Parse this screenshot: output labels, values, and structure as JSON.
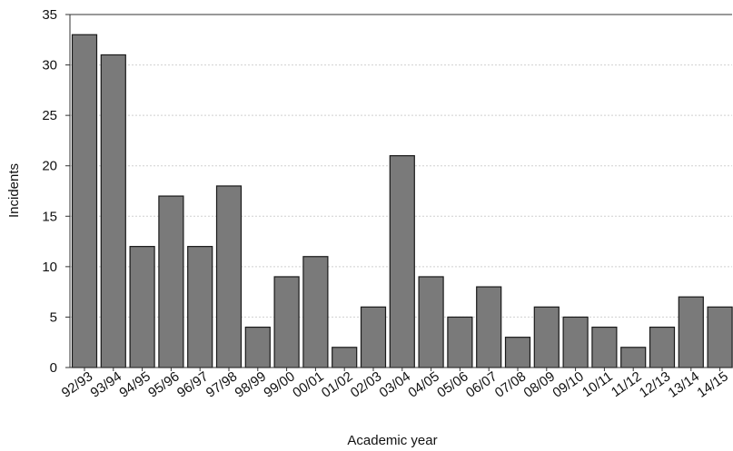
{
  "chart_data": {
    "type": "bar",
    "xlabel": "Academic year",
    "ylabel": "Incidents",
    "ylim": [
      0,
      35
    ],
    "yticks": [
      0,
      5,
      10,
      15,
      20,
      25,
      30,
      35
    ],
    "grid": true,
    "categories": [
      "92/93",
      "93/94",
      "94/95",
      "95/96",
      "96/97",
      "97/98",
      "98/99",
      "99/00",
      "00/01",
      "01/02",
      "02/03",
      "03/04",
      "04/05",
      "05/06",
      "06/07",
      "07/08",
      "08/09",
      "09/10",
      "10/11",
      "11/12",
      "12/13",
      "13/14",
      "14/15"
    ],
    "values": [
      33,
      31,
      12,
      17,
      12,
      18,
      4,
      9,
      11,
      2,
      6,
      21,
      9,
      5,
      8,
      3,
      6,
      5,
      4,
      2,
      4,
      7,
      6
    ],
    "colors": {
      "bar": "#7a7a7a",
      "bar_stroke": "#1a1a1a",
      "grid": "#d0d0d0",
      "axis": "#333333"
    }
  }
}
